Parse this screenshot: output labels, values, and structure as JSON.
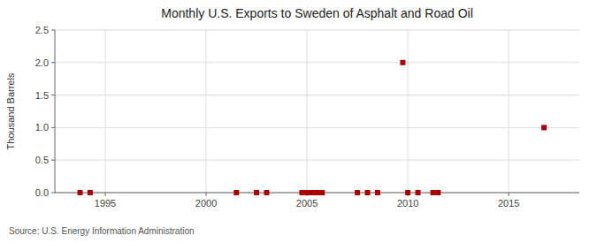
{
  "chart_data": {
    "type": "scatter",
    "title": "Monthly U.S. Exports to Sweden of Asphalt and Road Oil",
    "y_label": "Thousand Barrels",
    "annotation": "Source: U.S. Energy Information Administration",
    "x": [
      1993.75,
      1994.25,
      2001.5,
      2002.5,
      2003.0,
      2004.75,
      2005.0,
      2005.25,
      2005.5,
      2005.75,
      2007.5,
      2008.0,
      2008.5,
      2009.75,
      2010.0,
      2010.5,
      2011.25,
      2011.5,
      2016.75
    ],
    "values": [
      0.0,
      0.0,
      0.0,
      0.0,
      0.0,
      0.0,
      0.0,
      0.0,
      0.0,
      0.0,
      0.0,
      0.0,
      0.0,
      2.0,
      0.0,
      0.0,
      0.0,
      0.0,
      1.0
    ],
    "color": "#aa0000",
    "marker": "square",
    "xlim": [
      1992.5,
      2018.5
    ],
    "ylim": [
      0.0,
      2.5
    ],
    "xticks": [
      1995,
      2000,
      2005,
      2010,
      2015
    ],
    "yticks": [
      {
        "value": 0.0,
        "label": "0.0"
      },
      0.5,
      {
        "value": 1.0,
        "label": "1.0"
      },
      1.5,
      {
        "value": 2.0,
        "label": "2.0"
      },
      2.5
    ],
    "grid": true
  }
}
